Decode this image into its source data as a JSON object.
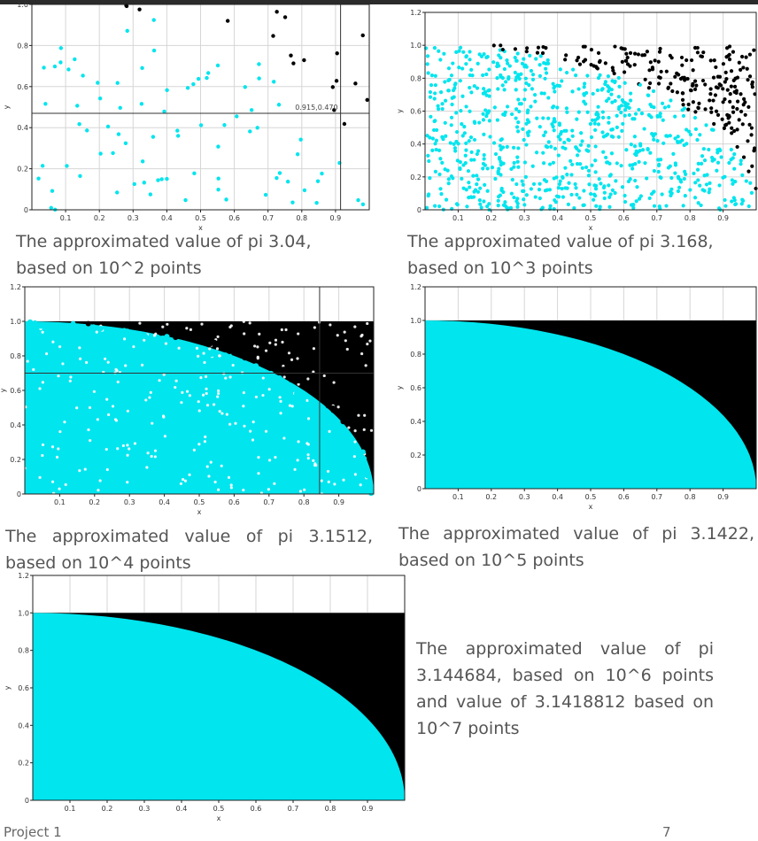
{
  "chart_data": [
    {
      "type": "scatter",
      "xlabel": "x",
      "ylabel": "y",
      "xlim": [
        0,
        1
      ],
      "ylim": [
        0,
        1
      ],
      "xticks": [
        "0.1",
        "0.2",
        "0.3",
        "0.4",
        "0.5",
        "0.6",
        "0.7",
        "0.8",
        "0.9"
      ],
      "yticks": [
        "0",
        "0.2",
        "0.4",
        "0.6",
        "0.8",
        "1.0"
      ],
      "points_total": 100,
      "crosshair": {
        "x": 0.915,
        "y": 0.47,
        "label": "0.915,0.470"
      },
      "series": [
        {
          "color": "#00e5ee",
          "region": "inside"
        },
        {
          "color": "#000000",
          "region": "outside"
        }
      ],
      "caption": [
        "The approximated value of pi 3.04,",
        "based on 10^2 points"
      ]
    },
    {
      "type": "scatter",
      "xlabel": "x",
      "ylabel": "y",
      "xlim": [
        0,
        1
      ],
      "ylim": [
        0,
        1.2
      ],
      "xticks": [
        "0.1",
        "0.2",
        "0.3",
        "0.4",
        "0.5",
        "0.6",
        "0.7",
        "0.8",
        "0.9"
      ],
      "yticks": [
        "0",
        "0.2",
        "0.4",
        "0.6",
        "0.8",
        "1.0",
        "1.2"
      ],
      "points_total": 1000,
      "series": [
        {
          "color": "#00e5ee",
          "region": "inside"
        },
        {
          "color": "#000000",
          "region": "outside"
        }
      ],
      "caption": [
        "The approximated value of pi 3.168,",
        "based on 10^3 points"
      ]
    },
    {
      "type": "scatter",
      "xlabel": "x",
      "ylabel": "y",
      "xlim": [
        0,
        1
      ],
      "ylim": [
        0,
        1.2
      ],
      "xticks": [
        "0.1",
        "0.2",
        "0.3",
        "0.4",
        "0.5",
        "0.6",
        "0.7",
        "0.8",
        "0.9"
      ],
      "yticks": [
        "0",
        "0.2",
        "0.4",
        "0.6",
        "0.8",
        "1.0",
        "1.2"
      ],
      "points_total": 10000,
      "crosshair": {
        "x": 0.845,
        "y": 0.7
      },
      "series": [
        {
          "color": "#00e5ee",
          "region": "inside"
        },
        {
          "color": "#000000",
          "region": "outside"
        }
      ],
      "caption": [
        "The approximated value of pi 3.1512,",
        "based on 10^4 points"
      ]
    },
    {
      "type": "scatter",
      "xlabel": "x",
      "ylabel": "y",
      "xlim": [
        0,
        1
      ],
      "ylim": [
        0,
        1.2
      ],
      "xticks": [
        "0.1",
        "0.2",
        "0.3",
        "0.4",
        "0.5",
        "0.6",
        "0.7",
        "0.8",
        "0.9"
      ],
      "yticks": [
        "0",
        "0.2",
        "0.4",
        "0.6",
        "0.8",
        "1.0",
        "1.2"
      ],
      "points_total": 100000,
      "series": [
        {
          "color": "#00e5ee",
          "region": "inside"
        },
        {
          "color": "#000000",
          "region": "outside"
        }
      ],
      "caption": [
        "The approximated value of pi 3.1422,",
        "based on 10^5 points"
      ]
    },
    {
      "type": "scatter",
      "xlabel": "x",
      "ylabel": "y",
      "xlim": [
        0,
        1
      ],
      "ylim": [
        0,
        1.2
      ],
      "xticks": [
        "0.1",
        "0.2",
        "0.3",
        "0.4",
        "0.5",
        "0.6",
        "0.7",
        "0.8",
        "0.9"
      ],
      "yticks": [
        "0",
        "0.2",
        "0.4",
        "0.6",
        "0.8",
        "1.0",
        "1.2"
      ],
      "points_total": 1000000,
      "series": [
        {
          "color": "#00e5ee",
          "region": "inside"
        },
        {
          "color": "#000000",
          "region": "outside"
        }
      ],
      "caption": [
        "The approximated value of pi",
        "3.144684, based on 10^6 points",
        "and value of 3.1418812 based on",
        "10^7 points"
      ]
    }
  ],
  "footer": {
    "left": "Project 1",
    "right": "7"
  }
}
